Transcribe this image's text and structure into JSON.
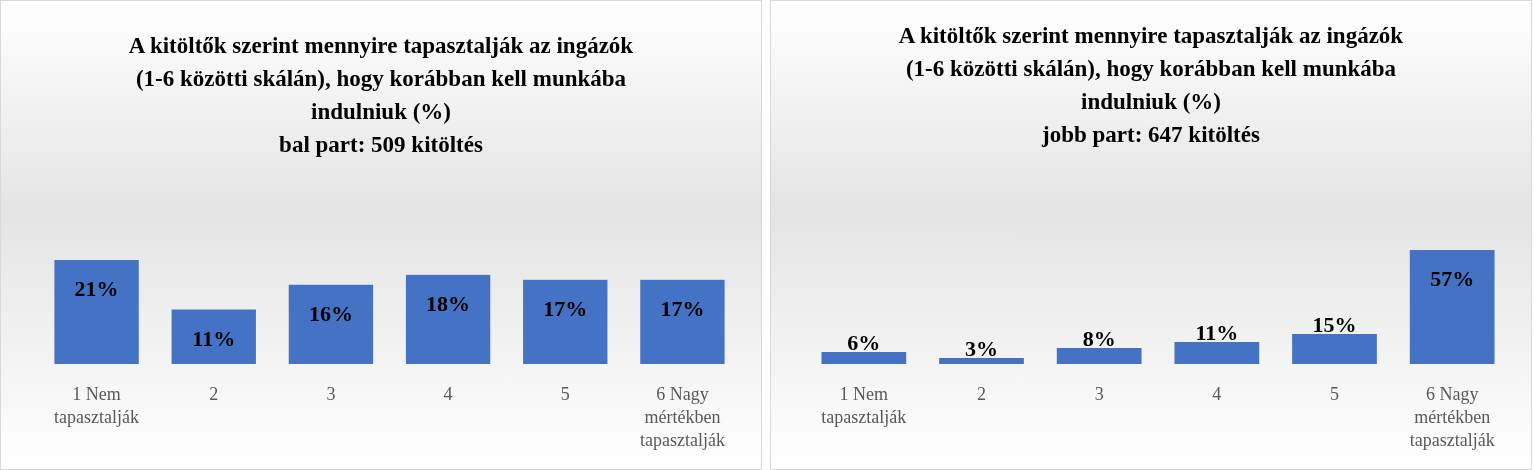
{
  "chart_data": [
    {
      "type": "bar",
      "title": "A kitöltők szerint mennyire tapasztalják az ingázók (1-6 közötti skálán), hogy korábban kell munkába indulniuk (%)",
      "subtitle": "bal part: 509 kitöltés",
      "categories": [
        "1 Nem tapasztalják",
        "2",
        "3",
        "4",
        "5",
        "6 Nagy mértékben tapasztalják"
      ],
      "values": [
        21,
        11,
        16,
        18,
        17,
        17
      ],
      "value_labels": [
        "21%",
        "11%",
        "16%",
        "18%",
        "17%",
        "17%"
      ],
      "color": "#4472c4"
    },
    {
      "type": "bar",
      "title": "A kitöltők szerint mennyire tapasztalják az ingázók (1-6 közötti skálán), hogy korábban kell munkába indulniuk (%)",
      "subtitle": "jobb part: 647 kitöltés",
      "categories": [
        "1 Nem tapasztalják",
        "2",
        "3",
        "4",
        "5",
        "6 Nagy mértékben tapasztalják"
      ],
      "values": [
        6,
        3,
        8,
        11,
        15,
        57
      ],
      "value_labels": [
        "6%",
        "3%",
        "8%",
        "11%",
        "15%",
        "57%"
      ],
      "color": "#4472c4"
    }
  ]
}
